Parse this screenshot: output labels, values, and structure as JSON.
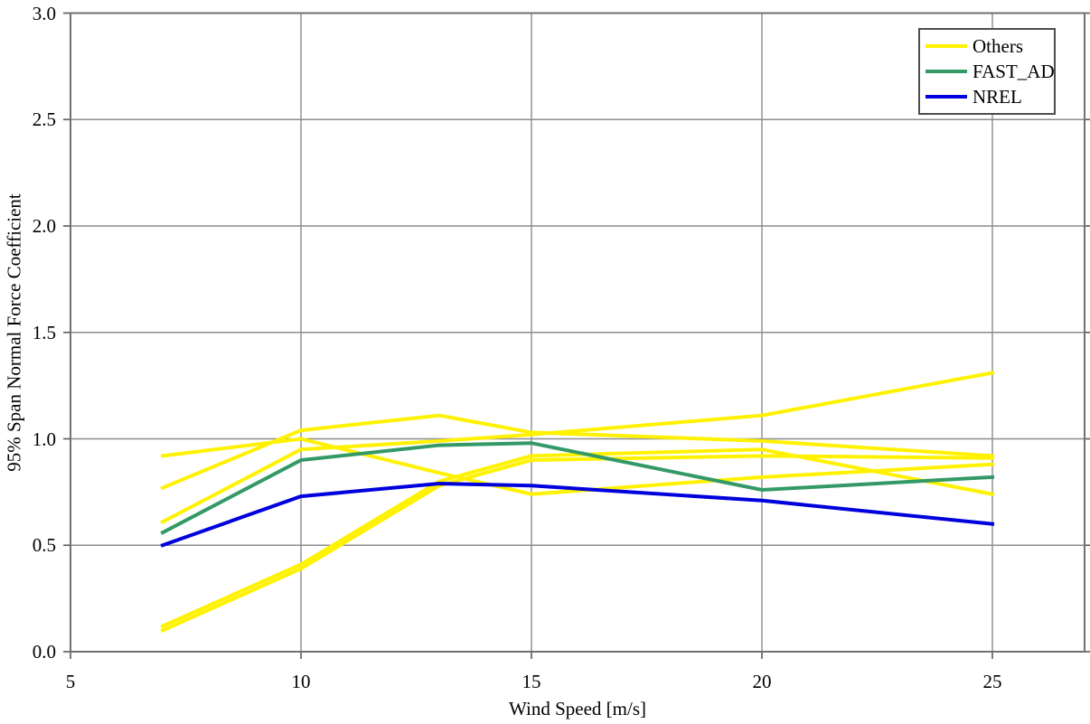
{
  "chart_data": {
    "type": "line",
    "title": "",
    "xlabel": "Wind Speed [m/s]",
    "ylabel": "95% Span Normal Force Coefficient",
    "xlim": [
      5,
      27
    ],
    "ylim": [
      0.0,
      3.0
    ],
    "xticks": [
      5,
      10,
      15,
      20,
      25
    ],
    "xtick_labels": [
      "5",
      "10",
      "15",
      "20",
      "25"
    ],
    "yticks": [
      0.0,
      0.5,
      1.0,
      1.5,
      2.0,
      2.5,
      3.0
    ],
    "ytick_labels": [
      "0.0",
      "0.5",
      "1.0",
      "1.5",
      "2.0",
      "2.5",
      "3.0"
    ],
    "grid": true,
    "legend_position": "top-right",
    "x": [
      7,
      10,
      13,
      15,
      20,
      25
    ],
    "series": [
      {
        "name": "Others",
        "color": "#FFF200",
        "values": [
          0.92,
          1.0,
          0.84,
          0.74,
          0.82,
          0.88
        ]
      },
      {
        "name": "Others",
        "color": "#FFF200",
        "values": [
          0.77,
          1.04,
          1.11,
          1.03,
          0.99,
          0.92
        ]
      },
      {
        "name": "Others",
        "color": "#FFF200",
        "values": [
          0.61,
          0.95,
          0.99,
          1.02,
          1.11,
          1.31
        ]
      },
      {
        "name": "Others",
        "color": "#FFF200",
        "values": [
          0.12,
          0.41,
          0.8,
          0.92,
          0.95,
          0.74
        ]
      },
      {
        "name": "Others",
        "color": "#FFF200",
        "values": [
          0.1,
          0.39,
          0.78,
          0.9,
          0.92,
          0.91
        ]
      },
      {
        "name": "FAST_AD",
        "color": "#339966",
        "values": [
          0.56,
          0.9,
          0.97,
          0.98,
          0.76,
          0.82
        ]
      },
      {
        "name": "NREL",
        "color": "#0000DD",
        "values": [
          0.5,
          0.73,
          0.79,
          0.78,
          0.71,
          0.6
        ]
      }
    ],
    "legend": [
      {
        "label": "Others",
        "color": "#FFF200"
      },
      {
        "label": "FAST_AD",
        "color": "#339966"
      },
      {
        "label": "NREL",
        "color": "#0000DD"
      }
    ]
  },
  "colors": {
    "background": "#FFFFFF",
    "gridline": "#8C8C8C",
    "border": "#707070",
    "tick": "#595959",
    "text": "#000000"
  }
}
